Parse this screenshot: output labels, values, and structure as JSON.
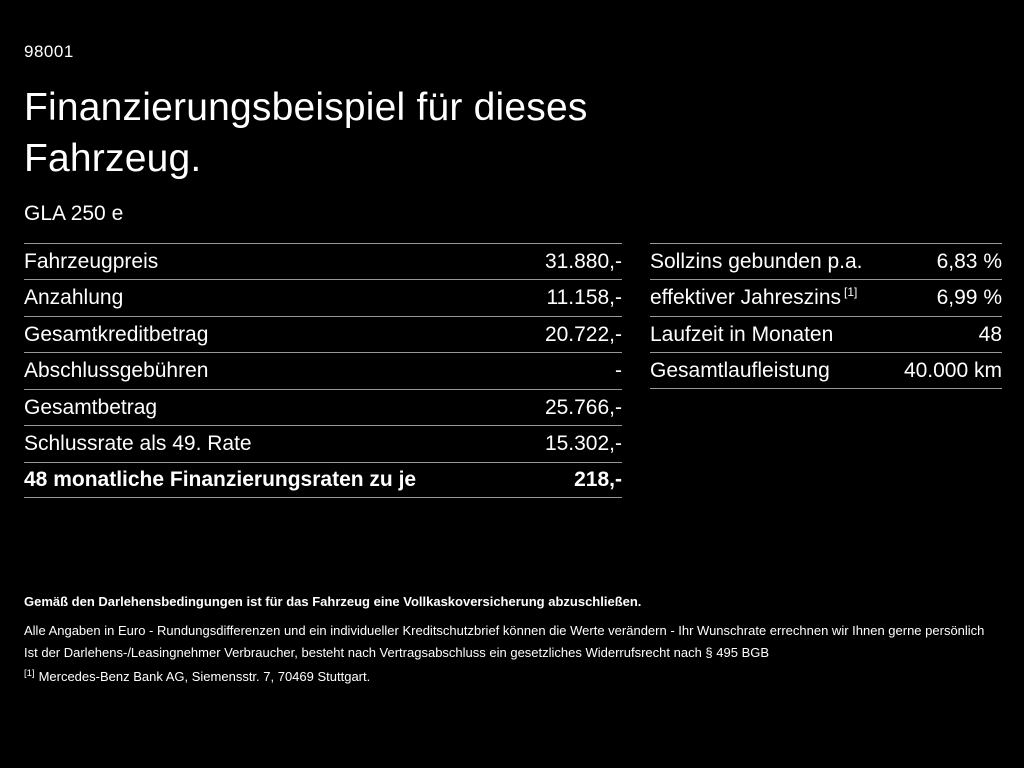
{
  "page": {
    "code": "98001",
    "title_line1": "Finanzierungsbeispiel für dieses",
    "title_line2": "Fahrzeug.",
    "model": "GLA 250 e"
  },
  "left_table": {
    "rows": [
      {
        "label": "Fahrzeugpreis",
        "value": "31.880,-"
      },
      {
        "label": "Anzahlung",
        "value": "11.158,-"
      },
      {
        "label": "Gesamtkreditbetrag",
        "value": "20.722,-"
      },
      {
        "label": "Abschlussgebühren",
        "value": "-"
      },
      {
        "label": "Gesamtbetrag",
        "value": "25.766,-"
      },
      {
        "label": "Schlussrate als 49. Rate",
        "value": "15.302,-"
      },
      {
        "label": "48 monatliche Finanzierungsraten zu je",
        "value": "218,-"
      }
    ]
  },
  "right_table": {
    "rows": [
      {
        "label": "Sollzins gebunden p.a.",
        "sup": "",
        "value": "6,83 %"
      },
      {
        "label": "effektiver Jahreszins",
        "sup": "[1]",
        "value": "6,99 %"
      },
      {
        "label": "Laufzeit in Monaten",
        "sup": "",
        "value": "48"
      },
      {
        "label": "Gesamtlaufleistung",
        "sup": "",
        "value": "40.000 km"
      }
    ]
  },
  "footer": {
    "bold_note": "Gemäß den Darlehensbedingungen ist für das Fahrzeug eine Vollkaskoversicherung abzuschließen.",
    "note1": "Alle Angaben in Euro - Rundungsdifferenzen und ein individueller Kreditschutzbrief können die Werte verändern - Ihr Wunschrate errechnen wir Ihnen gerne persönlich",
    "note2": "Ist der Darlehens-/Leasingnehmer Verbraucher, besteht nach Vertragsabschluss ein gesetzliches Widerrufsrecht nach § 495 BGB",
    "footnote_marker": "[1]",
    "footnote_text": "Mercedes-Benz Bank AG, Siemensstr. 7, 70469 Stuttgart."
  },
  "colors": {
    "background": "#000000",
    "text": "#ffffff",
    "divider": "#979797"
  }
}
